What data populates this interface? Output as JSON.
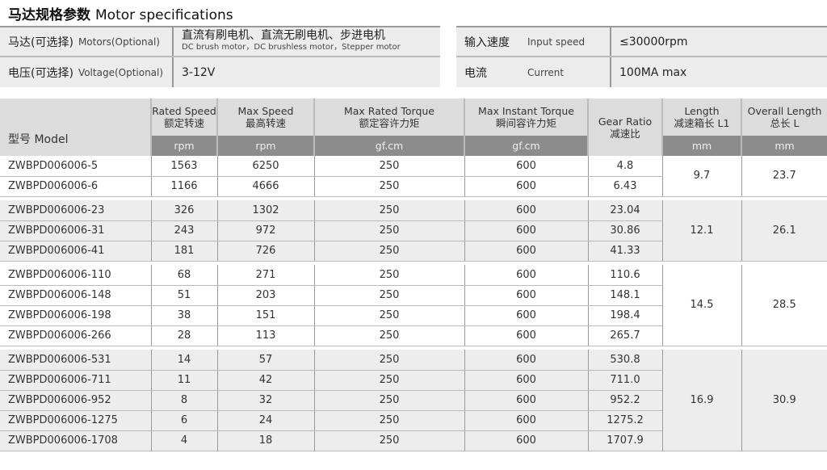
{
  "title": {
    "cn": "马达规格参数",
    "en": "Motor specifications"
  },
  "specs_left": [
    {
      "cn": "马达(可选择)",
      "en": "Motors(Optional)",
      "value": "直流有刷电机、直流无刷电机、步进电机",
      "value_en": "DC brush motor，DC brushless motor，Stepper motor"
    },
    {
      "cn": "电压(可选择)",
      "en": "Voltage(Optional)",
      "value": "3-12V"
    }
  ],
  "specs_right": [
    {
      "cn": "输入速度",
      "en": "Input speed",
      "value": "≤30000rpm"
    },
    {
      "cn": "电流",
      "en": "Current",
      "value": "100MA max"
    }
  ],
  "table": {
    "headers": [
      {
        "en": "型号 Model"
      },
      {
        "en": "Rated Speed",
        "cn": "额定转速",
        "unit": "rpm"
      },
      {
        "en": "Max Speed",
        "cn": "最高转速",
        "unit": "rpm"
      },
      {
        "en": "Max Rated Torque",
        "cn": "额定容许力矩",
        "unit": "gf.cm"
      },
      {
        "en": "Max Instant Torque",
        "cn": "瞬间容许力矩",
        "unit": "gf.cm"
      },
      {
        "en": "Gear Ratio",
        "cn": "减速比"
      },
      {
        "en": "Length",
        "cn": "减速箱长 L1",
        "unit": "mm"
      },
      {
        "en": "Overall Length",
        "cn": "总长 L",
        "unit": "mm"
      }
    ],
    "groups": [
      {
        "l1": "9.7",
        "l": "23.7",
        "rows": [
          [
            "ZWBPD006006-5",
            "1563",
            "6250",
            "250",
            "600",
            "4.8"
          ],
          [
            "ZWBPD006006-6",
            "1166",
            "4666",
            "250",
            "600",
            "6.43"
          ]
        ]
      },
      {
        "l1": "12.1",
        "l": "26.1",
        "rows": [
          [
            "ZWBPD006006-23",
            "326",
            "1302",
            "250",
            "600",
            "23.04"
          ],
          [
            "ZWBPD006006-31",
            "243",
            "972",
            "250",
            "600",
            "30.86"
          ],
          [
            "ZWBPD006006-41",
            "181",
            "726",
            "250",
            "600",
            "41.33"
          ]
        ]
      },
      {
        "l1": "14.5",
        "l": "28.5",
        "rows": [
          [
            "ZWBPD006006-110",
            "68",
            "271",
            "250",
            "600",
            "110.6"
          ],
          [
            "ZWBPD006006-148",
            "51",
            "203",
            "250",
            "600",
            "148.1"
          ],
          [
            "ZWBPD006006-198",
            "38",
            "151",
            "250",
            "600",
            "198.4"
          ],
          [
            "ZWBPD006006-266",
            "28",
            "113",
            "250",
            "600",
            "265.7"
          ]
        ]
      },
      {
        "l1": "16.9",
        "l": "30.9",
        "rows": [
          [
            "ZWBPD006006-531",
            "14",
            "57",
            "250",
            "600",
            "530.8"
          ],
          [
            "ZWBPD006006-711",
            "11",
            "42",
            "250",
            "600",
            "711.0"
          ],
          [
            "ZWBPD006006-952",
            "8",
            "32",
            "250",
            "600",
            "952.2"
          ],
          [
            "ZWBPD006006-1275",
            "6",
            "24",
            "250",
            "600",
            "1275.2"
          ],
          [
            "ZWBPD006006-1708",
            "4",
            "18",
            "250",
            "600",
            "1707.9"
          ]
        ]
      }
    ]
  }
}
